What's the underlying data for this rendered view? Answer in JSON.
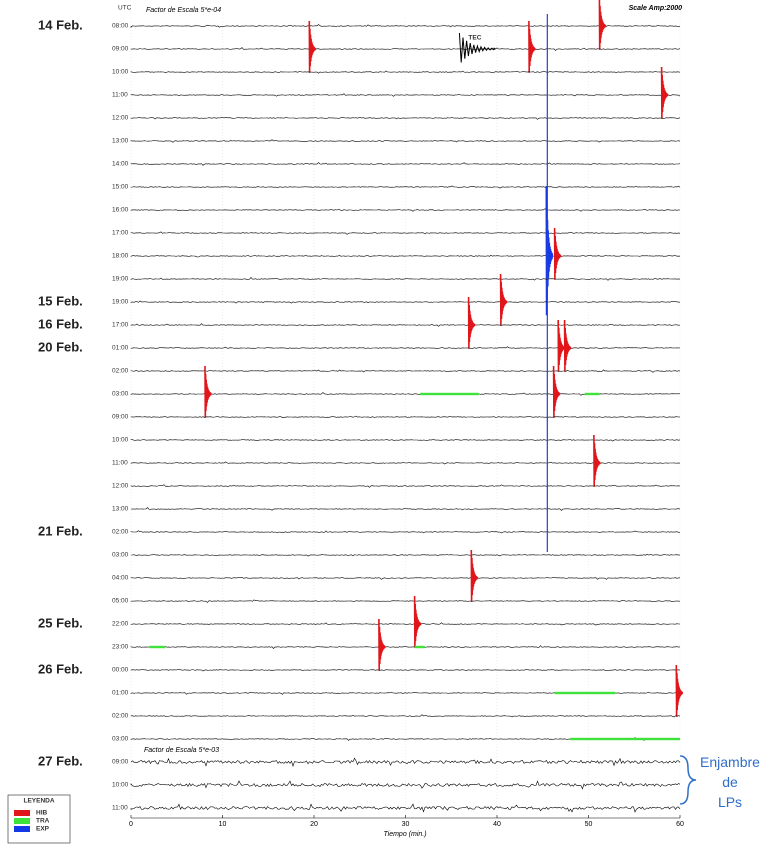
{
  "chart_data": {
    "type": "helicorder",
    "header_left": "UTC",
    "scale_top": "Factor de Escala 5*e-04",
    "scale_amp": "Scale Amp:2000",
    "scale_bottom": "Factor de Escala 5*e-03",
    "xlabel": "Tiempo (min.)",
    "xlim": [
      0,
      60
    ],
    "xticks": [
      0,
      10,
      20,
      30,
      40,
      50,
      60
    ],
    "trace_color": "#000000",
    "reference_minute": 45.5,
    "reference_color": "#2a3fcf",
    "legend": {
      "title": "LEYENDA",
      "entries": [
        {
          "name": "HIB",
          "color": "#e0161b"
        },
        {
          "name": "TRA",
          "color": "#3ee23a"
        },
        {
          "name": "EXP",
          "color": "#1439e6"
        }
      ]
    },
    "annotation": {
      "text": "Enjambre de LPs",
      "lines": [
        "Enjambre",
        "de",
        "LPs"
      ]
    },
    "rows": [
      {
        "date": "14 Feb.",
        "time": "08:00",
        "events": [
          {
            "type": "HIB",
            "minute": 51.3
          }
        ]
      },
      {
        "date": null,
        "time": "09:00",
        "events": [
          {
            "type": "HIB",
            "minute": 19.6
          },
          {
            "type": "TEC",
            "minute": 36
          },
          {
            "type": "HIB",
            "minute": 43.6
          }
        ]
      },
      {
        "date": null,
        "time": "10:00",
        "events": []
      },
      {
        "date": null,
        "time": "11:00",
        "events": [
          {
            "type": "HIB",
            "minute": 58.1
          }
        ]
      },
      {
        "date": null,
        "time": "12:00",
        "events": []
      },
      {
        "date": null,
        "time": "13:00",
        "events": []
      },
      {
        "date": null,
        "time": "14:00",
        "events": []
      },
      {
        "date": null,
        "time": "15:00",
        "events": []
      },
      {
        "date": null,
        "time": "16:00",
        "events": []
      },
      {
        "date": null,
        "time": "17:00",
        "events": []
      },
      {
        "date": null,
        "time": "18:00",
        "events": [
          {
            "type": "EXP",
            "minute": 45.5
          },
          {
            "type": "HIB",
            "minute": 46.4
          }
        ]
      },
      {
        "date": null,
        "time": "19:00",
        "events": []
      },
      {
        "date": "15 Feb.",
        "time": "19:00",
        "events": [
          {
            "type": "HIB",
            "minute": 40.5
          }
        ]
      },
      {
        "date": "16 Feb.",
        "time": "17:00",
        "events": [
          {
            "type": "HIB",
            "minute": 37
          }
        ]
      },
      {
        "date": "20 Feb.",
        "time": "01:00",
        "events": [
          {
            "type": "HIB",
            "minute": 46.8
          },
          {
            "type": "HIB",
            "minute": 47.5
          }
        ]
      },
      {
        "date": null,
        "time": "02:00",
        "events": []
      },
      {
        "date": null,
        "time": "03:00",
        "events": [
          {
            "type": "HIB",
            "minute": 8.2
          },
          {
            "type": "TRA",
            "start": 31.6,
            "end": 38
          },
          {
            "type": "HIB",
            "minute": 46.3
          },
          {
            "type": "TRA",
            "start": 49.6,
            "end": 51.2
          }
        ]
      },
      {
        "date": null,
        "time": "09:00",
        "events": []
      },
      {
        "date": null,
        "time": "10:00",
        "events": []
      },
      {
        "date": null,
        "time": "11:00",
        "events": [
          {
            "type": "HIB",
            "minute": 50.7
          }
        ]
      },
      {
        "date": null,
        "time": "12:00",
        "events": []
      },
      {
        "date": null,
        "time": "13:00",
        "events": []
      },
      {
        "date": "21 Feb.",
        "time": "02:00",
        "events": []
      },
      {
        "date": null,
        "time": "03:00",
        "events": []
      },
      {
        "date": null,
        "time": "04:00",
        "events": [
          {
            "type": "HIB",
            "minute": 37.3
          }
        ]
      },
      {
        "date": null,
        "time": "05:00",
        "events": []
      },
      {
        "date": "25 Feb.",
        "time": "22:00",
        "events": [
          {
            "type": "HIB",
            "minute": 31.1
          }
        ]
      },
      {
        "date": null,
        "time": "23:00",
        "events": [
          {
            "type": "TRA",
            "start": 2,
            "end": 3.7
          },
          {
            "type": "HIB",
            "minute": 27.2
          },
          {
            "type": "TRA",
            "start": 31,
            "end": 32.1
          }
        ]
      },
      {
        "date": "26 Feb.",
        "time": "00:00",
        "events": []
      },
      {
        "date": null,
        "time": "01:00",
        "events": [
          {
            "type": "TRA",
            "start": 46.3,
            "end": 52.9
          },
          {
            "type": "HIB",
            "minute": 59.7
          }
        ]
      },
      {
        "date": null,
        "time": "02:00",
        "events": []
      },
      {
        "date": null,
        "time": "03:00",
        "events": [
          {
            "type": "TRA",
            "start": 48,
            "end": 60
          }
        ]
      },
      {
        "date": "27 Feb.",
        "time": "09:00",
        "events": []
      },
      {
        "date": null,
        "time": "10:00",
        "events": []
      },
      {
        "date": null,
        "time": "11:00",
        "events": []
      }
    ]
  }
}
